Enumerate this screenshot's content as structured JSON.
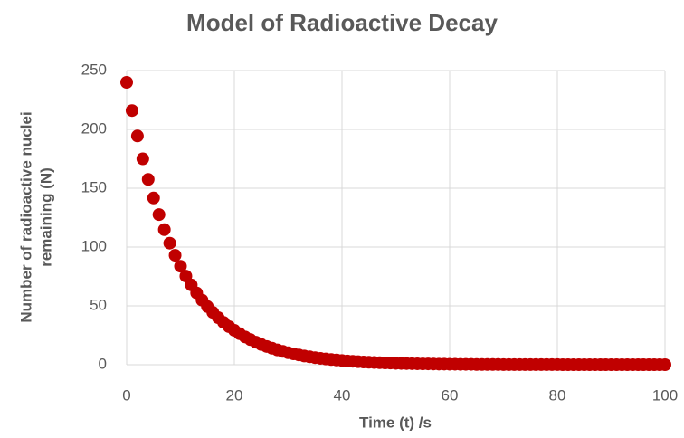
{
  "chart_data": {
    "type": "scatter",
    "title": "Model of Radioactive Decay",
    "xlabel": "Time (t) /s",
    "ylabel": [
      "Number of radioactive nuclei",
      "remaining (N)"
    ],
    "color": "#c00000",
    "x": [
      0,
      1,
      2,
      3,
      4,
      5,
      6,
      7,
      8,
      9,
      10,
      11,
      12,
      13,
      14,
      15,
      16,
      17,
      18,
      19,
      20,
      21,
      22,
      23,
      24,
      25,
      26,
      27,
      28,
      29,
      30,
      31,
      32,
      33,
      34,
      35,
      36,
      37,
      38,
      39,
      40,
      41,
      42,
      43,
      44,
      45,
      46,
      47,
      48,
      49,
      50,
      51,
      52,
      53,
      54,
      55,
      56,
      57,
      58,
      59,
      60,
      61,
      62,
      63,
      64,
      65,
      66,
      67,
      68,
      69,
      70,
      71,
      72,
      73,
      74,
      75,
      76,
      77,
      78,
      79,
      80,
      81,
      82,
      83,
      84,
      85,
      86,
      87,
      88,
      89,
      90,
      91,
      92,
      93,
      94,
      95,
      96,
      97,
      98,
      99,
      100
    ],
    "values": [
      240,
      216,
      194.4,
      175.0,
      157.5,
      141.7,
      127.6,
      114.8,
      103.3,
      93.0,
      83.7,
      75.3,
      67.8,
      61.0,
      54.9,
      49.4,
      44.5,
      40.0,
      36.0,
      32.4,
      29.2,
      26.3,
      23.6,
      21.3,
      19.1,
      17.2,
      15.5,
      14.0,
      12.6,
      11.3,
      10.2,
      9.2,
      8.3,
      7.4,
      6.7,
      6.0,
      5.4,
      4.9,
      4.4,
      4.0,
      3.6,
      3.2,
      2.9,
      2.6,
      2.3,
      2.1,
      1.9,
      1.7,
      1.5,
      1.4,
      1.2,
      1.1,
      1.0,
      0.9,
      0.8,
      0.7,
      0.7,
      0.6,
      0.5,
      0.5,
      0.4,
      0.4,
      0.3,
      0.3,
      0.3,
      0.2,
      0.2,
      0.2,
      0.2,
      0.2,
      0.1,
      0.1,
      0.1,
      0.1,
      0.1,
      0.1,
      0.1,
      0.1,
      0.1,
      0.1,
      0.1,
      0,
      0,
      0,
      0,
      0,
      0,
      0,
      0,
      0,
      0,
      0,
      0,
      0,
      0,
      0,
      0,
      0,
      0,
      0,
      0
    ],
    "xlim": [
      0,
      100
    ],
    "xticks": [
      0,
      20,
      40,
      60,
      80,
      100
    ],
    "ylim": [
      0,
      250
    ],
    "yticks": [
      0,
      50,
      100,
      150,
      200,
      250
    ],
    "grid": true
  }
}
